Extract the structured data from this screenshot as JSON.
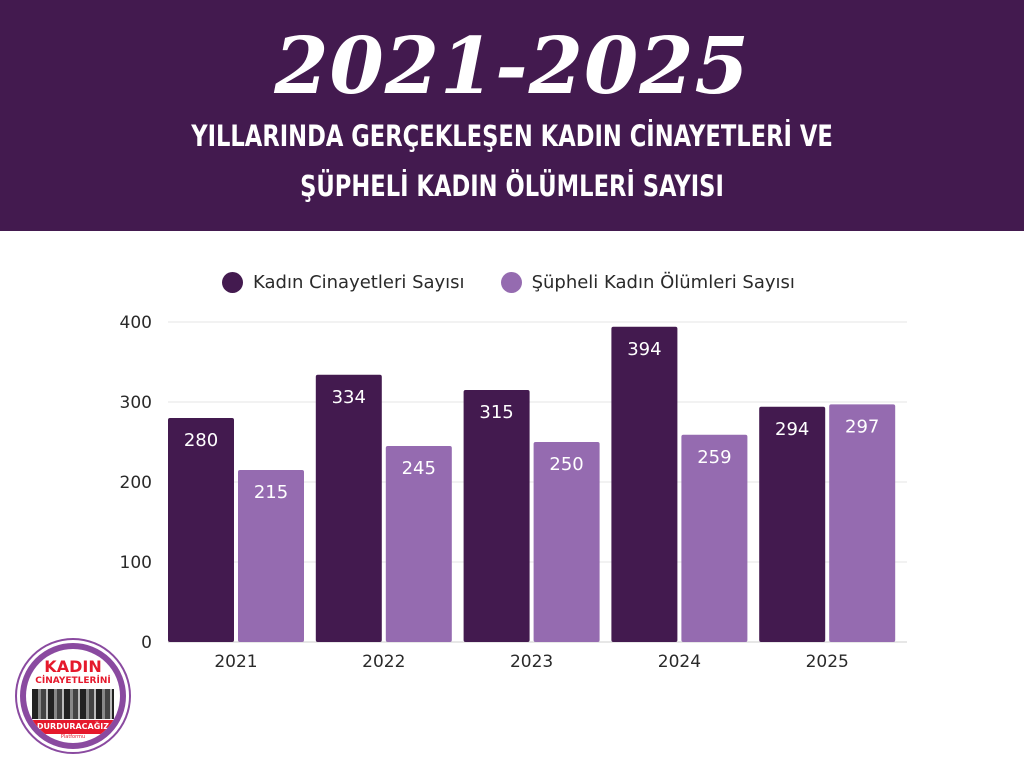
{
  "header": {
    "years": "2021-2025",
    "line1": "YILLARINDA GERÇEKLEŞEN KADIN CİNAYETLERİ VE",
    "line2": "ŞÜPHELİ KADIN ÖLÜMLERİ SAYISI"
  },
  "colors": {
    "banner": "#431a4f",
    "series1": "#431a4f",
    "series2": "#956bb0",
    "grid": "#e6e6e6"
  },
  "chart_data": {
    "type": "bar",
    "categories": [
      "2021",
      "2022",
      "2023",
      "2024",
      "2025"
    ],
    "series": [
      {
        "name": "Kadın Cinayetleri Sayısı",
        "values": [
          280,
          334,
          315,
          394,
          294
        ]
      },
      {
        "name": "Şüpheli Kadın Ölümleri Sayısı",
        "values": [
          215,
          245,
          250,
          259,
          297
        ]
      }
    ],
    "yticks": [
      "0",
      "100",
      "200",
      "300",
      "400"
    ],
    "ylim": [
      0,
      400
    ],
    "grid": true,
    "legend": "top"
  },
  "logo": {
    "line1": "KADIN",
    "line2": "CİNAYETLERİNİ",
    "line3": "DURDURACAĞIZ",
    "line4": "Platformu"
  }
}
